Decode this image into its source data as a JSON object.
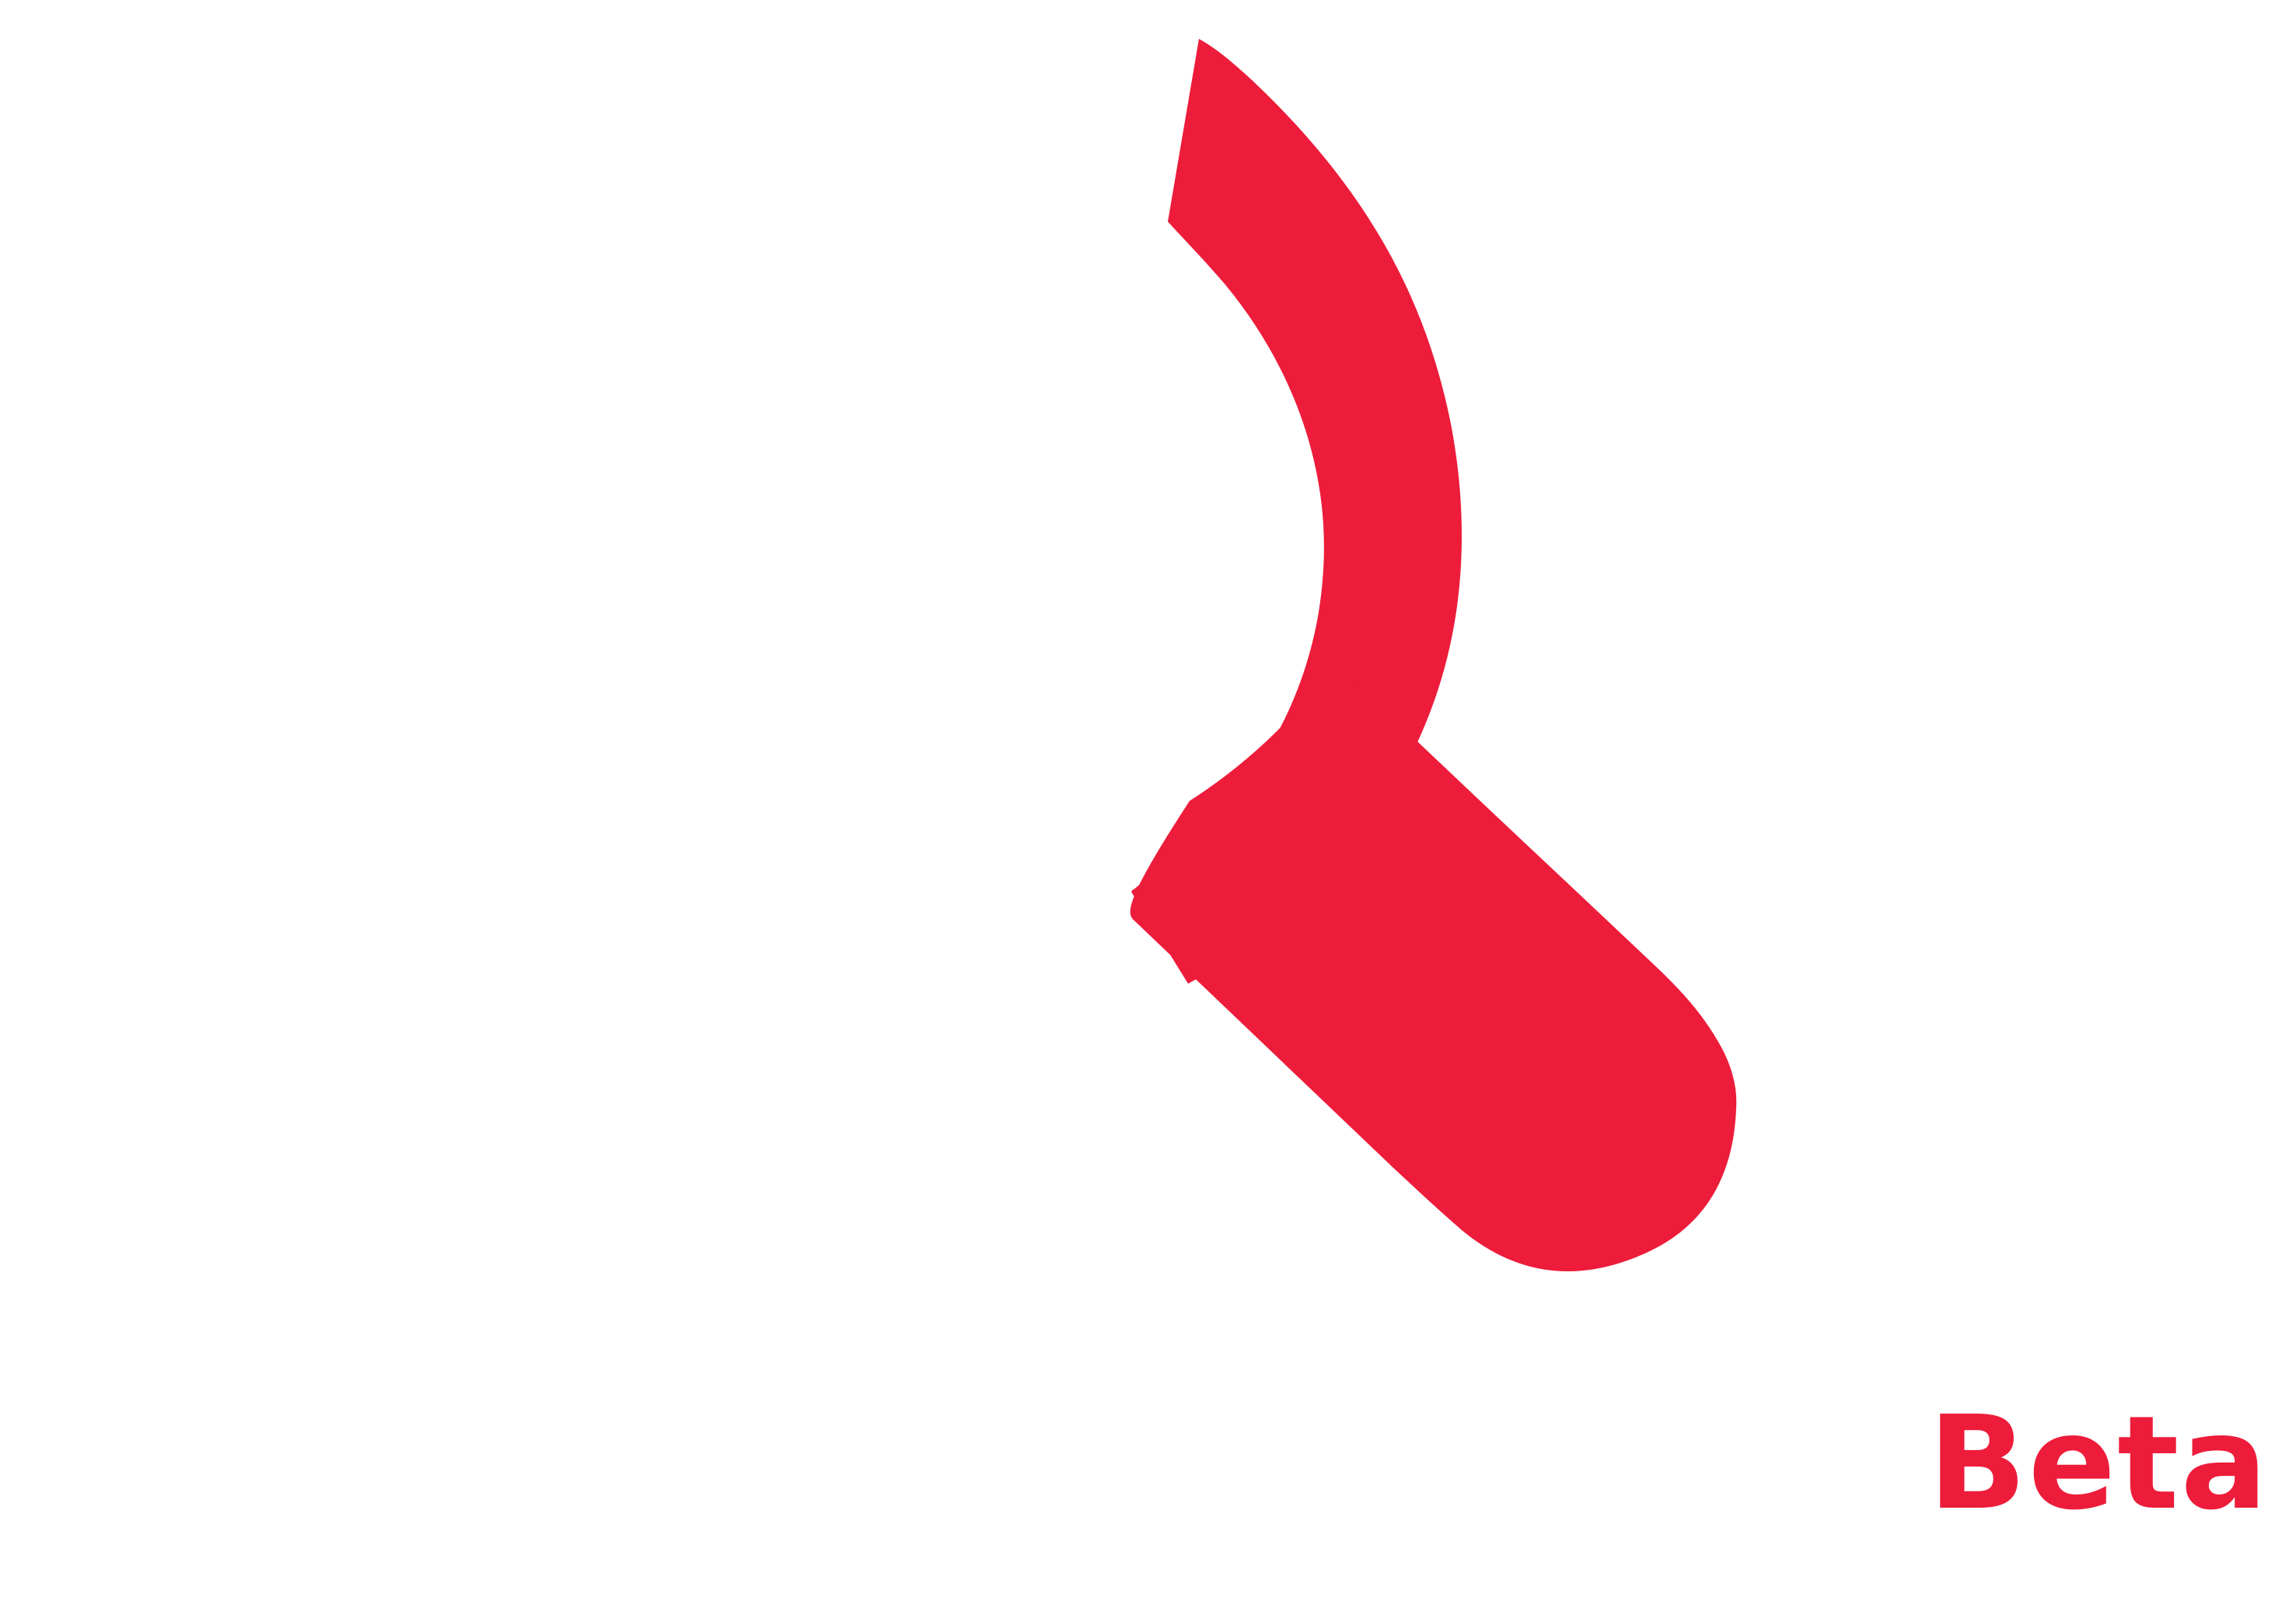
{
  "logo": {
    "icon": "magnifier-icon",
    "color": "#ED1C3A"
  },
  "badge": {
    "label": "Beta",
    "color": "#ED1C3A"
  },
  "background": "#ffffff"
}
